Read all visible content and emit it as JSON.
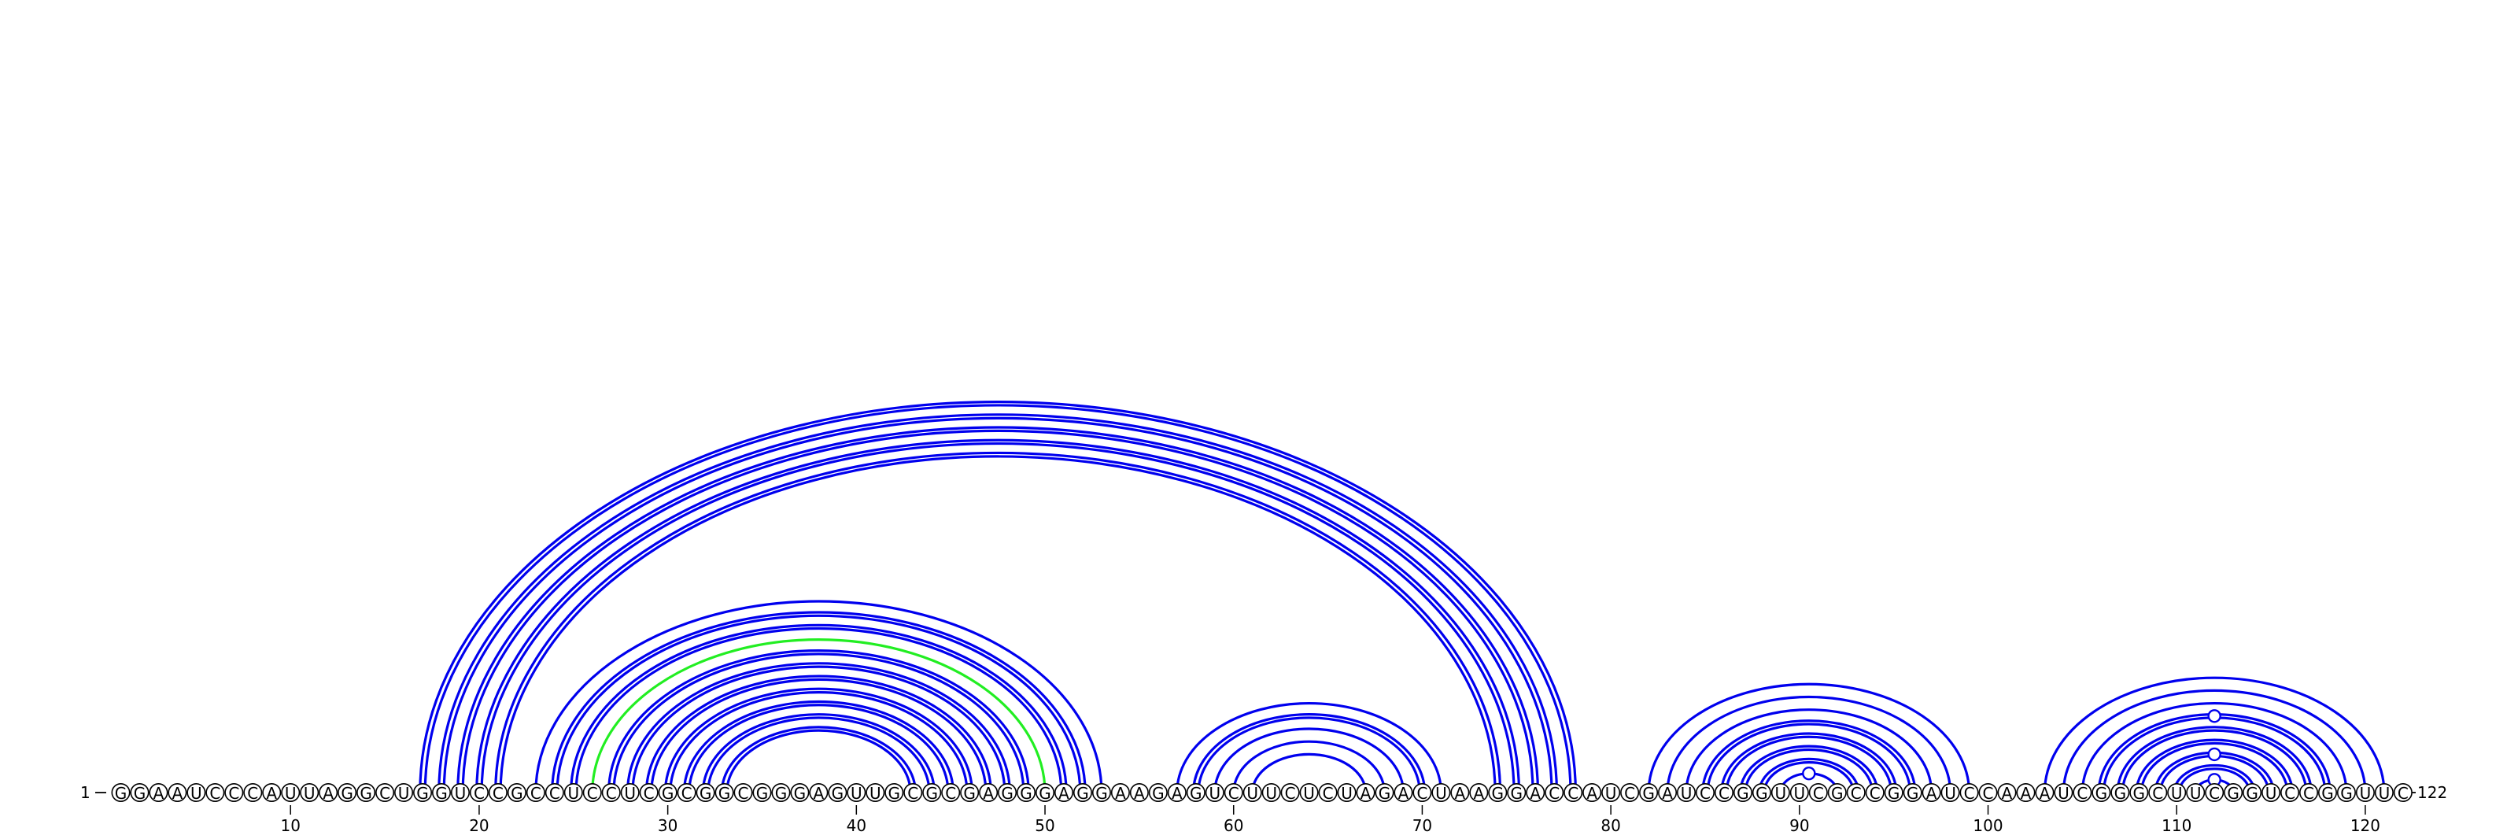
{
  "diagram": {
    "type": "rna-arc-diagram",
    "sequence": "GGAAUCCCAUUAGGCUGGUCCGCCUCCUCGCGGCGGGAGUUGCGCGAGGGAGGAAGAGUCUUCUCUAGACUAAGGACCAUCGAUCCGGUUCGCCGGAUCCAAAUCGGGCUUCGGUCCGGUUC",
    "start_label": "1",
    "end_label": "122",
    "tick_labels": [
      "10",
      "20",
      "30",
      "40",
      "50",
      "60",
      "70",
      "80",
      "90",
      "100",
      "110",
      "120"
    ],
    "colors": {
      "arc": "#0000ee",
      "highlight_arc": "#22ee22",
      "nucleotide_border": "#000000"
    },
    "pairs": [
      [
        17,
        78
      ],
      [
        18,
        77
      ],
      [
        19,
        76
      ],
      [
        20,
        75
      ],
      [
        21,
        74
      ],
      [
        23,
        53
      ],
      [
        24,
        52
      ],
      [
        25,
        51
      ],
      [
        26,
        50
      ],
      [
        27,
        49
      ],
      [
        28,
        48
      ],
      [
        29,
        47
      ],
      [
        30,
        46
      ],
      [
        31,
        45
      ],
      [
        32,
        44
      ],
      [
        33,
        43
      ],
      [
        57,
        71
      ],
      [
        58,
        70
      ],
      [
        59,
        69
      ],
      [
        60,
        68
      ],
      [
        61,
        67
      ],
      [
        82,
        99
      ],
      [
        83,
        98
      ],
      [
        84,
        97
      ],
      [
        85,
        96
      ],
      [
        86,
        95
      ],
      [
        87,
        94
      ],
      [
        88,
        93
      ],
      [
        89,
        92
      ],
      [
        103,
        121
      ],
      [
        104,
        120
      ],
      [
        105,
        119
      ],
      [
        106,
        118
      ],
      [
        107,
        117
      ],
      [
        108,
        116
      ],
      [
        109,
        115
      ],
      [
        110,
        114
      ],
      [
        111,
        113
      ]
    ],
    "double_pairs": [
      [
        17,
        78
      ],
      [
        18,
        77
      ],
      [
        19,
        76
      ],
      [
        20,
        75
      ],
      [
        21,
        74
      ],
      [
        24,
        52
      ],
      [
        25,
        51
      ],
      [
        27,
        49
      ],
      [
        28,
        48
      ],
      [
        29,
        47
      ],
      [
        30,
        46
      ],
      [
        31,
        45
      ],
      [
        32,
        44
      ],
      [
        33,
        43
      ],
      [
        58,
        70
      ],
      [
        85,
        96
      ],
      [
        86,
        95
      ],
      [
        87,
        94
      ],
      [
        88,
        93
      ],
      [
        106,
        118
      ],
      [
        107,
        117
      ],
      [
        108,
        116
      ],
      [
        109,
        115
      ],
      [
        110,
        114
      ]
    ],
    "highlight_pairs": [
      [
        26,
        50
      ]
    ],
    "arc_markers": [
      [
        89,
        92
      ],
      [
        106,
        118
      ],
      [
        109,
        115
      ],
      [
        111,
        113
      ]
    ]
  }
}
